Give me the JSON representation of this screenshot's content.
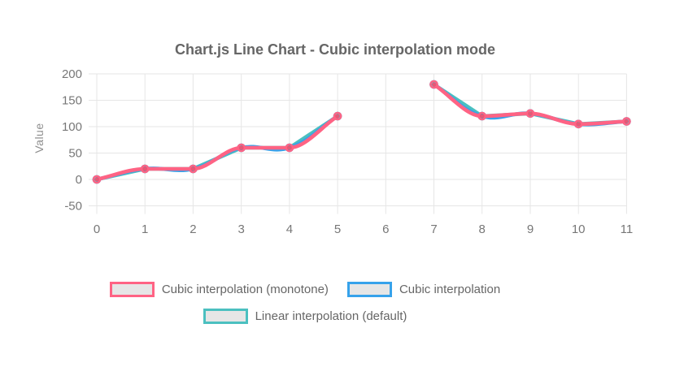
{
  "chart_data": {
    "type": "line",
    "title": "Chart.js Line Chart - Cubic interpolation mode",
    "ylabel": "Value",
    "x": [
      0,
      1,
      2,
      3,
      4,
      5,
      6,
      7,
      8,
      9,
      10,
      11
    ],
    "yticks": [
      200,
      150,
      100,
      50,
      0,
      -50
    ],
    "ylim": [
      -50,
      200
    ],
    "grid": true,
    "legend_position": "bottom",
    "series": [
      {
        "name": "Cubic interpolation (monotone)",
        "color": "#ff6384",
        "interpolation": "monotone",
        "tension": 0.4,
        "values": [
          0,
          20,
          20,
          60,
          60,
          120,
          null,
          180,
          120,
          125,
          105,
          110
        ]
      },
      {
        "name": "Cubic interpolation",
        "color": "#36a2eb",
        "interpolation": "cubic",
        "tension": 0.4,
        "values": [
          0,
          20,
          20,
          60,
          60,
          120,
          null,
          180,
          120,
          125,
          105,
          110
        ]
      },
      {
        "name": "Linear interpolation (default)",
        "color": "#4bc0c0",
        "interpolation": "linear",
        "values": [
          0,
          20,
          20,
          60,
          60,
          120,
          null,
          180,
          120,
          125,
          105,
          110
        ]
      }
    ],
    "point_style": {
      "fill": "rgba(0,0,0,0.1)",
      "radius": 4.1,
      "border_width": 2.4
    },
    "line_width": 4.6,
    "colors": {
      "grid": "#e6e6e6",
      "tick_text": "#777777",
      "title_text": "#666666",
      "legend_text": "#666666",
      "axis_label_text": "#8e8e8e",
      "legend_box_fill": "#e6e6e6"
    }
  }
}
